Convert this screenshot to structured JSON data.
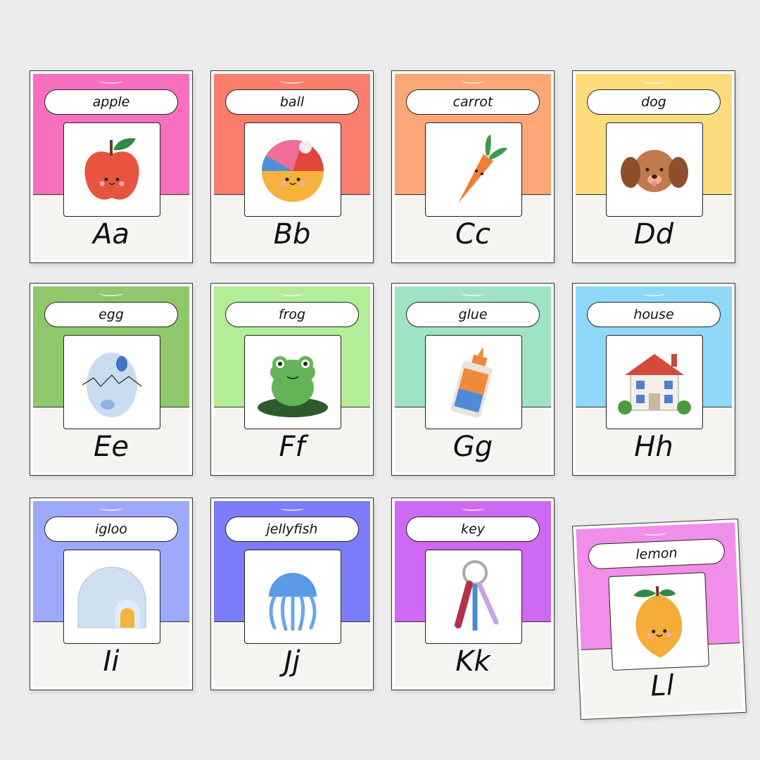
{
  "cards": [
    {
      "word": "apple",
      "letter": "Aa",
      "color": "#f96fc0",
      "icon": "apple-icon"
    },
    {
      "word": "ball",
      "letter": "Bb",
      "color": "#fb7d6c",
      "icon": "ball-icon"
    },
    {
      "word": "carrot",
      "letter": "Cc",
      "color": "#fca777",
      "icon": "carrot-icon"
    },
    {
      "word": "dog",
      "letter": "Dd",
      "color": "#fedc7e",
      "icon": "dog-icon"
    },
    {
      "word": "egg",
      "letter": "Ee",
      "color": "#8fc86a",
      "icon": "egg-icon"
    },
    {
      "word": "frog",
      "letter": "Ff",
      "color": "#b2ee98",
      "icon": "frog-icon"
    },
    {
      "word": "glue",
      "letter": "Gg",
      "color": "#9ee3c3",
      "icon": "glue-icon"
    },
    {
      "word": "house",
      "letter": "Hh",
      "color": "#8ed8fa",
      "icon": "house-icon"
    },
    {
      "word": "igloo",
      "letter": "Ii",
      "color": "#9ea9fc",
      "icon": "igloo-icon"
    },
    {
      "word": "jellyfish",
      "letter": "Jj",
      "color": "#7b7dfa",
      "icon": "jellyfish-icon"
    },
    {
      "word": "key",
      "letter": "Kk",
      "color": "#cf68f2",
      "icon": "key-icon"
    },
    {
      "word": "lemon",
      "letter": "Ll",
      "color": "#f08ee9",
      "icon": "lemon-icon"
    }
  ]
}
